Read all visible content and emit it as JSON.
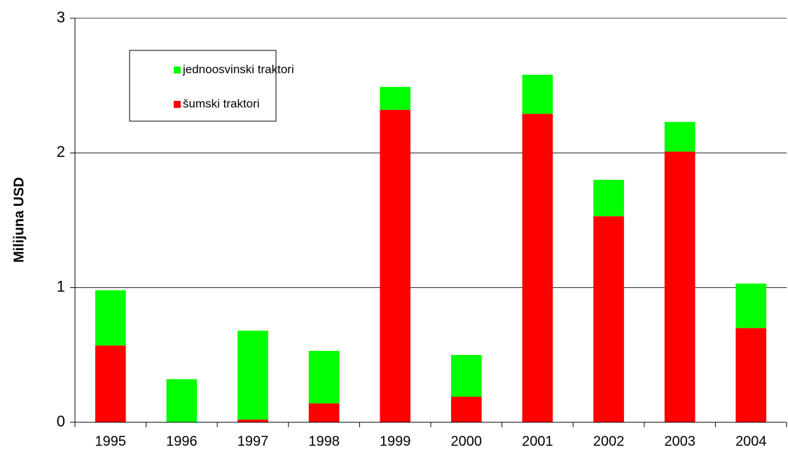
{
  "chart_data": {
    "type": "bar",
    "stacked": true,
    "y_label": "Milijuna USD",
    "categories": [
      "1995",
      "1996",
      "1997",
      "1998",
      "1999",
      "2000",
      "2001",
      "2002",
      "2003",
      "2004"
    ],
    "series": [
      {
        "name": "šumski traktori",
        "color": "#ff0000",
        "values": [
          0.57,
          0,
          0.02,
          0.14,
          2.32,
          0.19,
          2.29,
          1.53,
          2.01,
          0.7
        ]
      },
      {
        "name": "jednoosvinski traktori",
        "color": "#00ff00",
        "values": [
          0.41,
          0.32,
          0.66,
          0.39,
          0.17,
          0.31,
          0.29,
          0.27,
          0.22,
          0.33
        ]
      }
    ],
    "ylim": [
      0,
      3
    ],
    "yticks": [
      0,
      1,
      2,
      3
    ],
    "grid": true,
    "legend": "upper left"
  }
}
